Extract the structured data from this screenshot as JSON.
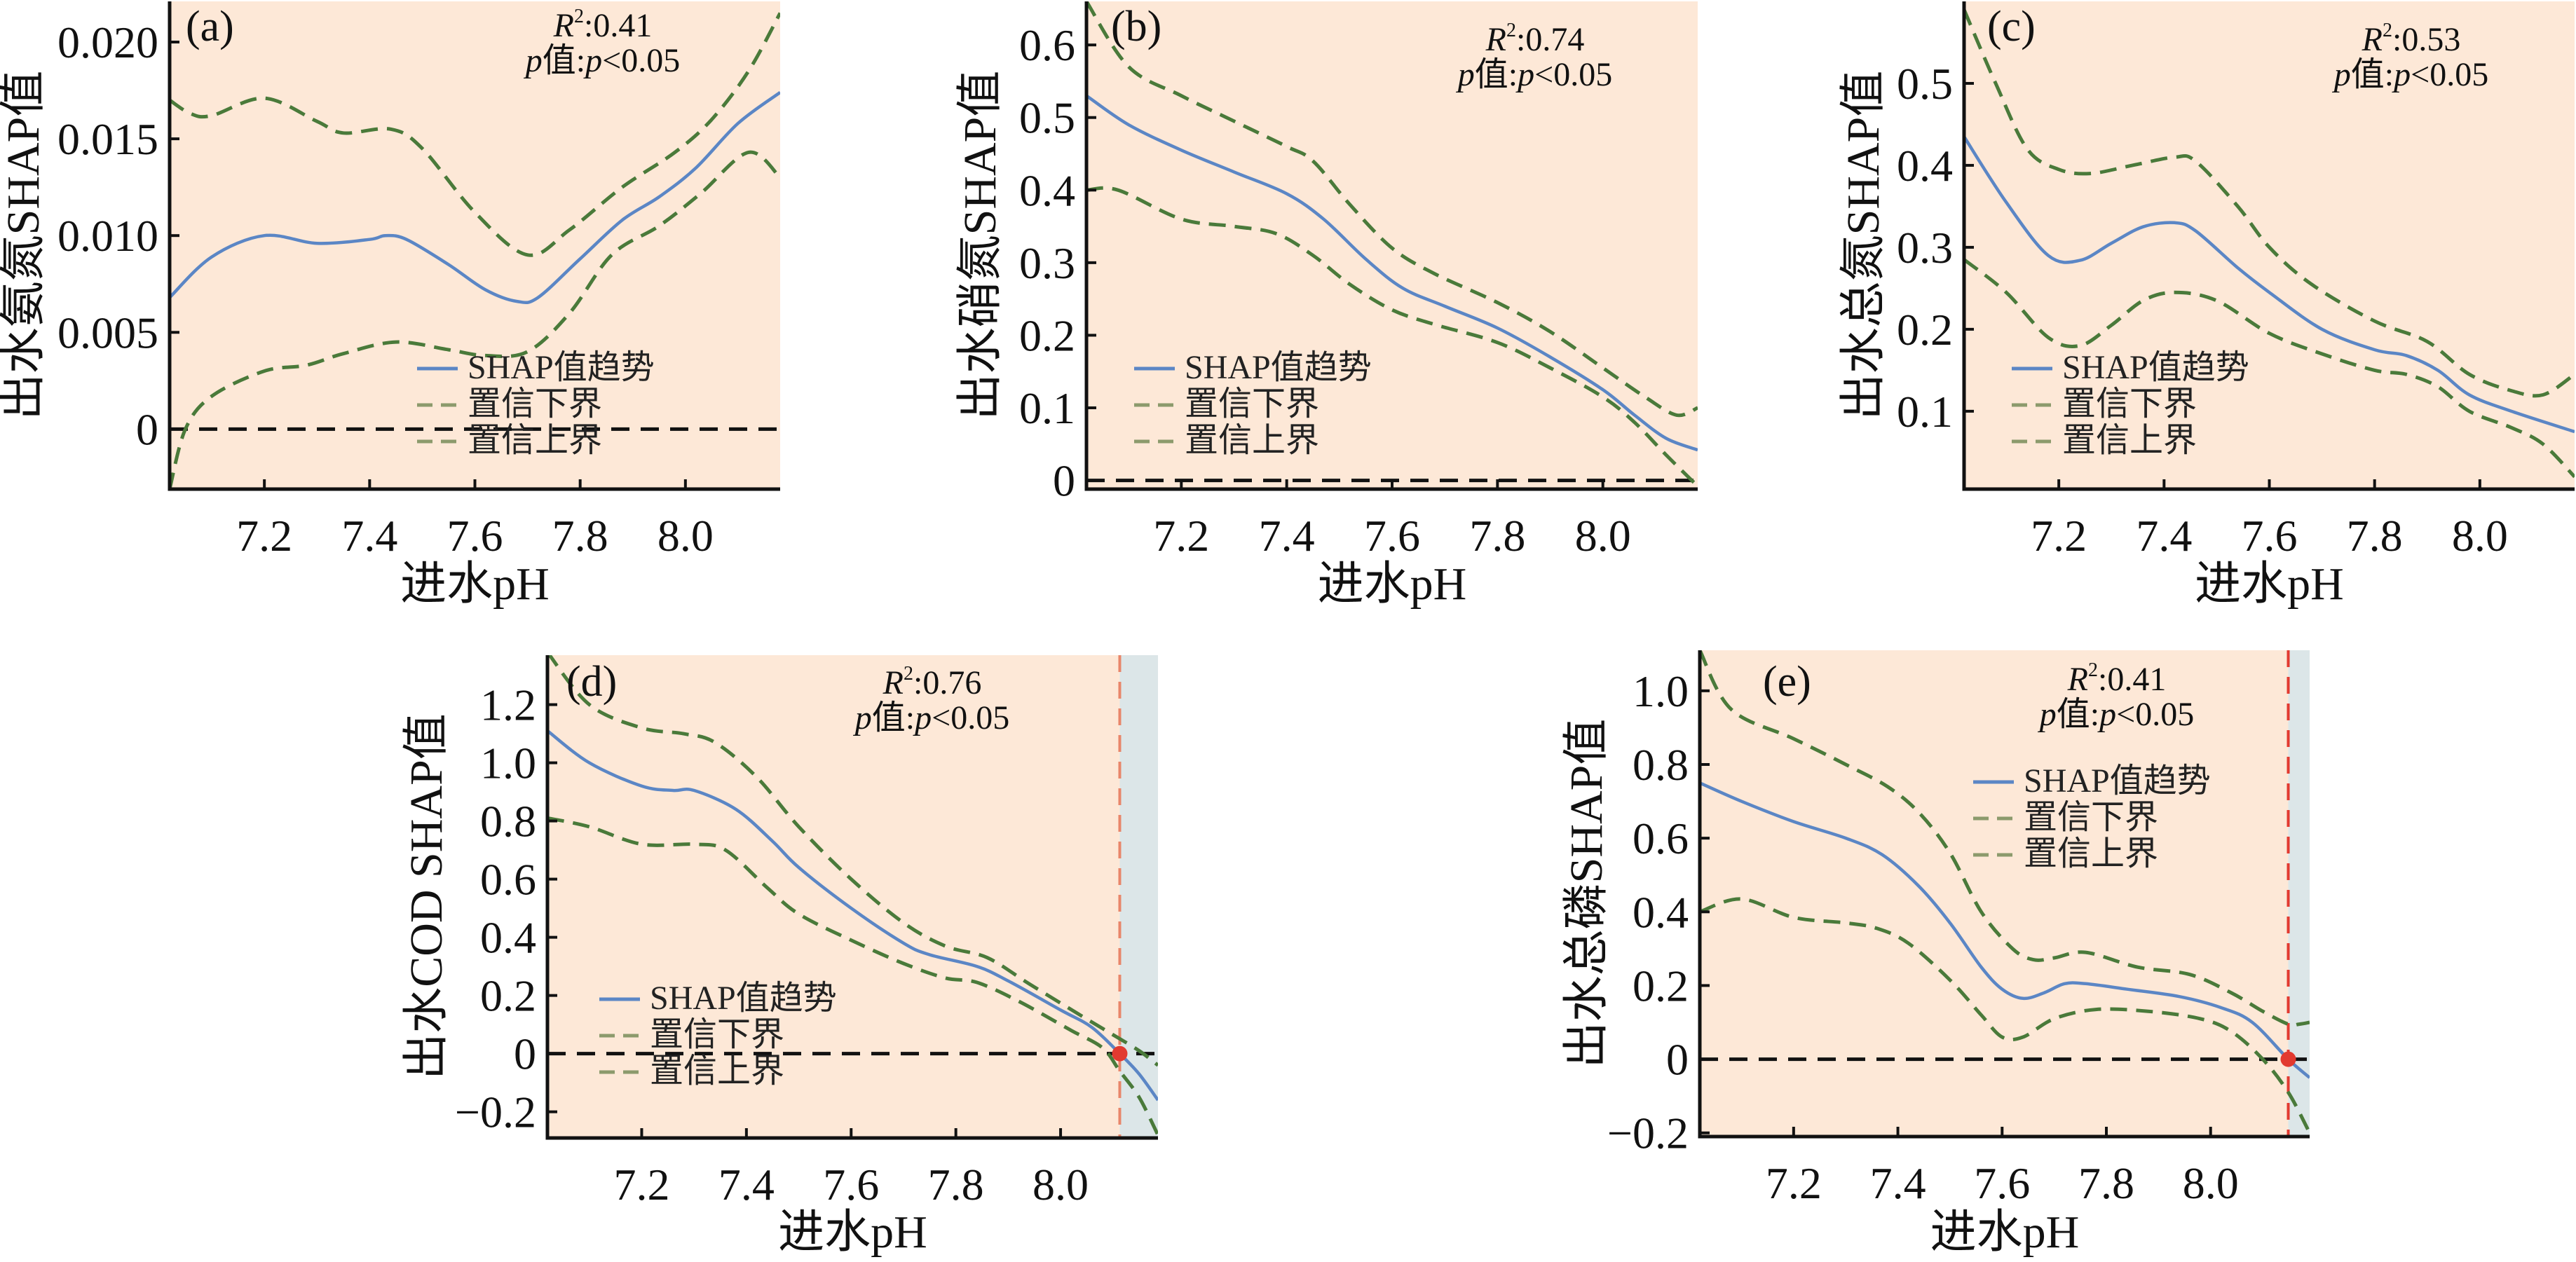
{
  "colors": {
    "background": "#FDE8D7",
    "region": "#DCE6E8",
    "shap_line": "#5B86C5",
    "ci_line": "#4A7A3A",
    "legend_ci": "#8C9A6C",
    "zero_line": "#111111",
    "vline_d": "#E8866A",
    "vline_e": "#E23A30",
    "dot": "#E23A30"
  },
  "legend": {
    "shap": "SHAP值趋势",
    "lower": "置信下界",
    "upper": "置信上界"
  },
  "chart_data": [
    {
      "type": "line",
      "panel": "(a)",
      "xlabel": "进水pH",
      "ylabel": "出水氨氮SHAP值",
      "r2": "0.41",
      "annot_r2_prefix": "R",
      "annot_r2_sup": "2",
      "annot_r2_value": ":0.41",
      "annot_p_prefix": "p",
      "annot_p_mid": "值:",
      "annot_p_italic": "p",
      "annot_p_value": "<0.05",
      "xlim": [
        7.02,
        8.18
      ],
      "ylim": [
        -0.0031,
        0.0221
      ],
      "xticks": [
        7.2,
        7.4,
        7.6,
        7.8,
        8.0
      ],
      "xtick_labels": [
        "7.2",
        "7.4",
        "7.6",
        "7.8",
        "8.0"
      ],
      "yticks": [
        0,
        0.005,
        0.01,
        0.015,
        0.02
      ],
      "ytick_labels": [
        "0",
        "0.005",
        "0.010",
        "0.015",
        "0.020"
      ],
      "legend_position": "lower-center",
      "annot_position": "top-right",
      "series": [
        {
          "name": "SHAP值趋势",
          "x": [
            7.02,
            7.1,
            7.2,
            7.3,
            7.4,
            7.43,
            7.47,
            7.55,
            7.62,
            7.68,
            7.72,
            7.8,
            7.88,
            7.95,
            8.02,
            8.1,
            8.18
          ],
          "y": [
            0.0068,
            0.0089,
            0.01,
            0.0096,
            0.0098,
            0.01,
            0.0098,
            0.0085,
            0.0072,
            0.0066,
            0.0068,
            0.0088,
            0.0108,
            0.012,
            0.0135,
            0.0158,
            0.0174
          ]
        },
        {
          "name": "置信下界",
          "x": [
            7.02,
            7.06,
            7.1,
            7.2,
            7.3,
            7.35,
            7.44,
            7.5,
            7.6,
            7.7,
            7.78,
            7.88,
            7.98,
            8.05,
            8.12,
            8.18
          ],
          "y": [
            0.017,
            0.0163,
            0.0162,
            0.0171,
            0.0159,
            0.0153,
            0.0155,
            0.0145,
            0.0112,
            0.009,
            0.0103,
            0.0125,
            0.0143,
            0.016,
            0.0185,
            0.0215
          ]
        },
        {
          "name": "置信上界",
          "x": [
            7.02,
            7.05,
            7.1,
            7.2,
            7.28,
            7.35,
            7.45,
            7.55,
            7.62,
            7.7,
            7.78,
            7.86,
            7.95,
            8.03,
            8.12,
            8.18
          ],
          "y": [
            -0.0031,
            0.0,
            0.0017,
            0.003,
            0.0033,
            0.0039,
            0.0045,
            0.0041,
            0.0038,
            0.004,
            0.006,
            0.009,
            0.0105,
            0.0122,
            0.0143,
            0.013
          ]
        }
      ]
    },
    {
      "type": "line",
      "panel": "(b)",
      "xlabel": "进水pH",
      "ylabel": "出水硝氮SHAP值",
      "annot_r2_prefix": "R",
      "annot_r2_sup": "2",
      "annot_r2_value": ":0.74",
      "annot_p_prefix": "p",
      "annot_p_mid": "值:",
      "annot_p_italic": "p",
      "annot_p_value": "<0.05",
      "xlim": [
        7.02,
        8.18
      ],
      "ylim": [
        -0.012,
        0.66
      ],
      "xticks": [
        7.2,
        7.4,
        7.6,
        7.8,
        8.0
      ],
      "xtick_labels": [
        "7.2",
        "7.4",
        "7.6",
        "7.8",
        "8.0"
      ],
      "yticks": [
        0,
        0.1,
        0.2,
        0.3,
        0.4,
        0.5,
        0.6
      ],
      "ytick_labels": [
        "0",
        "0.1",
        "0.2",
        "0.3",
        "0.4",
        "0.5",
        "0.6"
      ],
      "legend_position": "lower-left",
      "annot_position": "top-right",
      "series": [
        {
          "name": "SHAP值趋势",
          "x": [
            7.02,
            7.1,
            7.2,
            7.3,
            7.4,
            7.47,
            7.55,
            7.62,
            7.7,
            7.8,
            7.9,
            8.0,
            8.06,
            8.12,
            8.18
          ],
          "y": [
            0.53,
            0.49,
            0.455,
            0.425,
            0.395,
            0.36,
            0.305,
            0.265,
            0.24,
            0.21,
            0.17,
            0.125,
            0.09,
            0.058,
            0.042
          ]
        },
        {
          "name": "置信下界",
          "x": [
            7.02,
            7.1,
            7.2,
            7.3,
            7.4,
            7.45,
            7.52,
            7.6,
            7.68,
            7.8,
            7.9,
            8.0,
            8.08,
            8.14,
            8.18
          ],
          "y": [
            0.66,
            0.57,
            0.53,
            0.495,
            0.46,
            0.44,
            0.38,
            0.32,
            0.285,
            0.245,
            0.205,
            0.155,
            0.115,
            0.09,
            0.1
          ]
        },
        {
          "name": "置信上界",
          "x": [
            7.02,
            7.08,
            7.2,
            7.3,
            7.38,
            7.45,
            7.52,
            7.6,
            7.68,
            7.8,
            7.9,
            8.0,
            8.06,
            8.12,
            8.18
          ],
          "y": [
            0.4,
            0.4,
            0.36,
            0.35,
            0.34,
            0.31,
            0.27,
            0.235,
            0.215,
            0.19,
            0.155,
            0.115,
            0.08,
            0.035,
            -0.008
          ]
        }
      ]
    },
    {
      "type": "line",
      "panel": "(c)",
      "xlabel": "进水pH",
      "ylabel": "出水总氮SHAP值",
      "annot_r2_prefix": "R",
      "annot_r2_sup": "2",
      "annot_r2_value": ":0.53",
      "annot_p_prefix": "p",
      "annot_p_mid": "值:",
      "annot_p_italic": "p",
      "annot_p_value": "<0.05",
      "xlim": [
        7.02,
        8.18
      ],
      "ylim": [
        0.005,
        0.6
      ],
      "xticks": [
        7.2,
        7.4,
        7.6,
        7.8,
        8.0
      ],
      "xtick_labels": [
        "7.2",
        "7.4",
        "7.6",
        "7.8",
        "8.0"
      ],
      "yticks": [
        0.1,
        0.2,
        0.3,
        0.4,
        0.5
      ],
      "ytick_labels": [
        "0.1",
        "0.2",
        "0.3",
        "0.4",
        "0.5"
      ],
      "legend_position": "lower-left",
      "annot_position": "top-right",
      "series": [
        {
          "name": "SHAP值趋势",
          "x": [
            7.02,
            7.1,
            7.18,
            7.24,
            7.3,
            7.36,
            7.42,
            7.46,
            7.54,
            7.6,
            7.7,
            7.8,
            7.86,
            7.92,
            7.98,
            8.06,
            8.18
          ],
          "y": [
            0.435,
            0.355,
            0.29,
            0.284,
            0.305,
            0.325,
            0.33,
            0.32,
            0.275,
            0.245,
            0.2,
            0.175,
            0.168,
            0.15,
            0.12,
            0.1,
            0.075
          ]
        },
        {
          "name": "置信下界",
          "x": [
            7.02,
            7.08,
            7.14,
            7.2,
            7.26,
            7.34,
            7.42,
            7.46,
            7.54,
            7.6,
            7.68,
            7.8,
            7.9,
            7.98,
            8.06,
            8.12,
            8.18
          ],
          "y": [
            0.59,
            0.5,
            0.42,
            0.395,
            0.39,
            0.4,
            0.41,
            0.405,
            0.35,
            0.3,
            0.255,
            0.21,
            0.185,
            0.145,
            0.125,
            0.12,
            0.145
          ]
        },
        {
          "name": "置信上界",
          "x": [
            7.02,
            7.1,
            7.18,
            7.24,
            7.3,
            7.36,
            7.42,
            7.5,
            7.6,
            7.7,
            7.8,
            7.86,
            7.92,
            7.98,
            8.06,
            8.12,
            8.18
          ],
          "y": [
            0.285,
            0.245,
            0.19,
            0.18,
            0.205,
            0.235,
            0.245,
            0.235,
            0.195,
            0.17,
            0.15,
            0.145,
            0.13,
            0.1,
            0.08,
            0.06,
            0.02
          ]
        }
      ]
    },
    {
      "type": "line",
      "panel": "(d)",
      "xlabel": "进水pH",
      "ylabel": "出水COD SHAP值",
      "annot_r2_prefix": "R",
      "annot_r2_sup": "2",
      "annot_r2_value": ":0.76",
      "annot_p_prefix": "p",
      "annot_p_mid": "值:",
      "annot_p_italic": "p",
      "annot_p_value": "<0.05",
      "xlim": [
        7.02,
        8.186
      ],
      "ylim": [
        -0.29,
        1.37
      ],
      "xticks": [
        7.2,
        7.4,
        7.6,
        7.8,
        8.0
      ],
      "xtick_labels": [
        "7.2",
        "7.4",
        "7.6",
        "7.8",
        "8.0"
      ],
      "yticks": [
        -0.2,
        0,
        0.2,
        0.4,
        0.6,
        0.8,
        1.0,
        1.2
      ],
      "ytick_labels": [
        "−0.2",
        "0",
        "0.2",
        "0.4",
        "0.6",
        "0.8",
        "1.0",
        "1.2"
      ],
      "threshold_x": 8.113,
      "legend_position": "lower-left",
      "annot_position": "top-right",
      "series": [
        {
          "name": "SHAP值趋势",
          "x": [
            7.02,
            7.1,
            7.2,
            7.26,
            7.3,
            7.38,
            7.45,
            7.5,
            7.6,
            7.7,
            7.75,
            7.84,
            7.9,
            8.0,
            8.06,
            8.113,
            8.15,
            8.186
          ],
          "y": [
            1.11,
            1.0,
            0.92,
            0.905,
            0.905,
            0.84,
            0.73,
            0.64,
            0.5,
            0.38,
            0.34,
            0.3,
            0.25,
            0.15,
            0.09,
            0.0,
            -0.07,
            -0.16
          ]
        },
        {
          "name": "置信下界",
          "x": [
            7.02,
            7.1,
            7.2,
            7.28,
            7.34,
            7.42,
            7.5,
            7.6,
            7.7,
            7.78,
            7.86,
            7.94,
            8.04,
            8.1,
            8.15,
            8.186
          ],
          "y": [
            1.38,
            1.2,
            1.12,
            1.1,
            1.07,
            0.95,
            0.78,
            0.6,
            0.45,
            0.37,
            0.33,
            0.24,
            0.13,
            0.065,
            0.01,
            -0.04
          ]
        },
        {
          "name": "置信上界",
          "x": [
            7.02,
            7.1,
            7.2,
            7.3,
            7.36,
            7.44,
            7.5,
            7.6,
            7.7,
            7.78,
            7.84,
            7.92,
            8.02,
            8.08,
            8.113,
            8.15,
            8.186
          ],
          "y": [
            0.81,
            0.78,
            0.72,
            0.72,
            0.7,
            0.57,
            0.48,
            0.39,
            0.31,
            0.26,
            0.245,
            0.18,
            0.08,
            0.02,
            -0.06,
            -0.15,
            -0.28
          ]
        }
      ]
    },
    {
      "type": "line",
      "panel": "(e)",
      "xlabel": "进水pH",
      "ylabel": "出水总磷SHAP值",
      "annot_r2_prefix": "R",
      "annot_r2_sup": "2",
      "annot_r2_value": ":0.41",
      "annot_p_prefix": "p",
      "annot_p_mid": "值:",
      "annot_p_italic": "p",
      "annot_p_value": "<0.05",
      "xlim": [
        7.02,
        8.19
      ],
      "ylim": [
        -0.21,
        1.11
      ],
      "xticks": [
        7.2,
        7.4,
        7.6,
        7.8,
        8.0
      ],
      "xtick_labels": [
        "7.2",
        "7.4",
        "7.6",
        "7.8",
        "8.0"
      ],
      "yticks": [
        -0.2,
        0,
        0.2,
        0.4,
        0.6,
        0.8,
        1.0
      ],
      "ytick_labels": [
        "−0.2",
        "0",
        "0.2",
        "0.4",
        "0.6",
        "0.8",
        "1.0"
      ],
      "threshold_x": 8.149,
      "legend_position": "top-right",
      "annot_position": "top-right",
      "series": [
        {
          "name": "SHAP值趋势",
          "x": [
            7.02,
            7.1,
            7.2,
            7.3,
            7.37,
            7.44,
            7.5,
            7.56,
            7.6,
            7.64,
            7.68,
            7.72,
            7.76,
            7.84,
            7.94,
            8.02,
            8.08,
            8.149,
            8.19
          ],
          "y": [
            0.75,
            0.7,
            0.645,
            0.6,
            0.555,
            0.47,
            0.37,
            0.25,
            0.19,
            0.165,
            0.18,
            0.205,
            0.205,
            0.19,
            0.17,
            0.14,
            0.1,
            0.0,
            -0.05
          ]
        },
        {
          "name": "置信下界",
          "x": [
            7.02,
            7.08,
            7.2,
            7.3,
            7.38,
            7.44,
            7.5,
            7.56,
            7.62,
            7.66,
            7.7,
            7.76,
            7.86,
            7.96,
            8.04,
            8.1,
            8.149,
            8.17,
            8.19
          ],
          "y": [
            1.11,
            0.95,
            0.87,
            0.8,
            0.74,
            0.67,
            0.56,
            0.4,
            0.3,
            0.27,
            0.275,
            0.29,
            0.25,
            0.23,
            0.18,
            0.13,
            0.095,
            0.095,
            0.1
          ]
        },
        {
          "name": "置信上界",
          "x": [
            7.02,
            7.1,
            7.2,
            7.3,
            7.36,
            7.42,
            7.5,
            7.56,
            7.6,
            7.64,
            7.7,
            7.78,
            7.88,
            7.98,
            8.04,
            8.1,
            8.149,
            8.19
          ],
          "y": [
            0.4,
            0.435,
            0.385,
            0.37,
            0.355,
            0.315,
            0.215,
            0.12,
            0.06,
            0.06,
            0.11,
            0.135,
            0.13,
            0.11,
            0.075,
            0.0,
            -0.09,
            -0.2
          ]
        }
      ]
    }
  ]
}
